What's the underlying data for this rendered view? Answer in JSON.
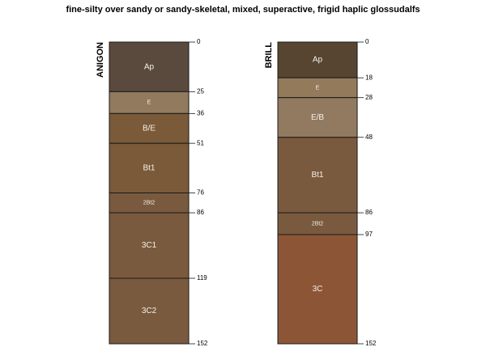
{
  "title": "fine-silty over sandy or sandy-skeletal, mixed, superactive, frigid haplic glossudalfs",
  "max_depth": 152,
  "profiles": [
    {
      "name": "ANIGON",
      "horizons": [
        {
          "name": "Ap",
          "top": 0,
          "bottom": 25,
          "color": "#5a4a3d"
        },
        {
          "name": "E",
          "top": 25,
          "bottom": 36,
          "color": "#927a5e"
        },
        {
          "name": "B/E",
          "top": 36,
          "bottom": 51,
          "color": "#7a5a38"
        },
        {
          "name": "Bt1",
          "top": 51,
          "bottom": 76,
          "color": "#7a5a38"
        },
        {
          "name": "2Bt2",
          "top": 76,
          "bottom": 86,
          "color": "#7a5a3e"
        },
        {
          "name": "3C1",
          "top": 86,
          "bottom": 119,
          "color": "#7a5a3e"
        },
        {
          "name": "3C2",
          "top": 119,
          "bottom": 152,
          "color": "#7a5a3e"
        }
      ],
      "depth_ticks": [
        "0",
        "25",
        "36",
        "51",
        "76",
        "86",
        "119",
        "152"
      ]
    },
    {
      "name": "BRILL",
      "horizons": [
        {
          "name": "Ap",
          "top": 0,
          "bottom": 18,
          "color": "#574532"
        },
        {
          "name": "E",
          "top": 18,
          "bottom": 28,
          "color": "#927a5a"
        },
        {
          "name": "E/B",
          "top": 28,
          "bottom": 48,
          "color": "#927a60"
        },
        {
          "name": "Bt1",
          "top": 48,
          "bottom": 86,
          "color": "#7a5a3e"
        },
        {
          "name": "2Bt2",
          "top": 86,
          "bottom": 97,
          "color": "#7a5a3e"
        },
        {
          "name": "3C",
          "top": 97,
          "bottom": 152,
          "color": "#8c5636"
        }
      ],
      "depth_ticks": [
        "0",
        "18",
        "28",
        "48",
        "86",
        "97",
        "152"
      ]
    }
  ]
}
